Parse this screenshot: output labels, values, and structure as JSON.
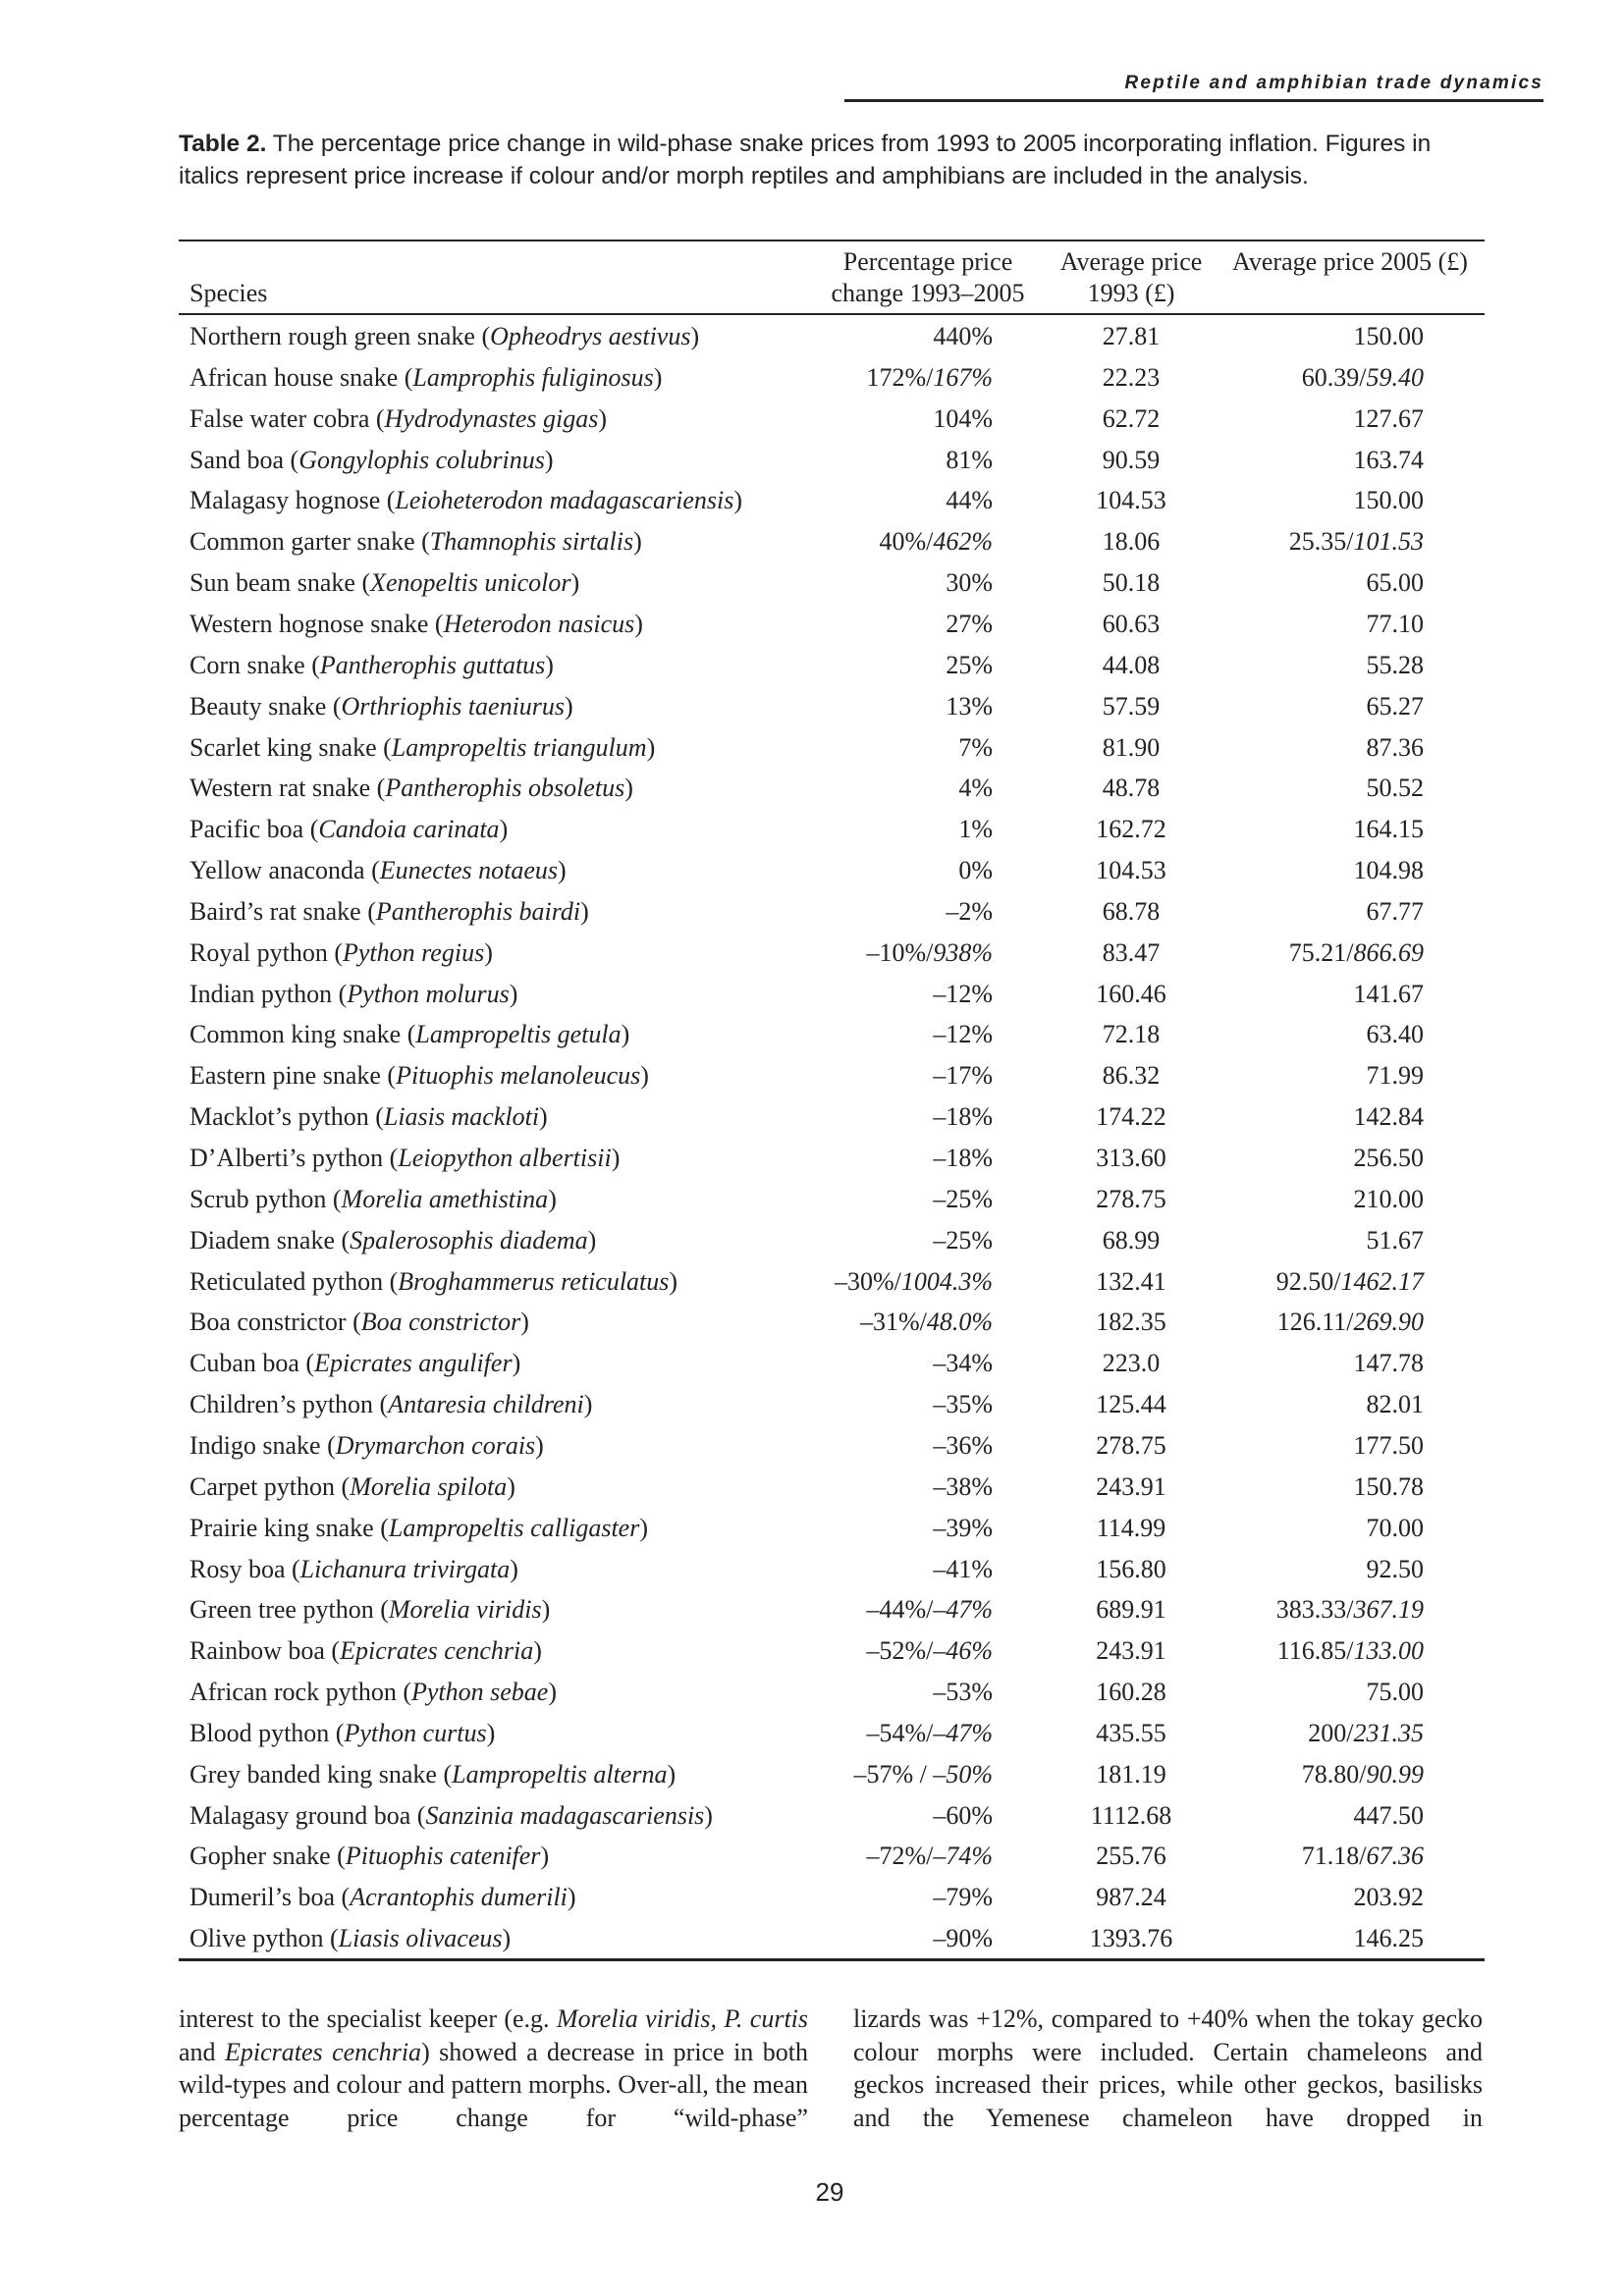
{
  "header": {
    "running_title": "Reptile and amphibian trade dynamics"
  },
  "table": {
    "caption_label": "Table 2.",
    "caption_text": "The percentage price change in wild-phase snake prices from 1993 to 2005 incorporating inflation. Figures in italics represent price increase if colour and/or morph reptiles and amphibians are included in the analysis.",
    "columns": [
      "Species",
      "Percentage price change 1993–2005",
      "Average price 1993 (£)",
      "Average price 2005 (£)"
    ],
    "rows": [
      [
        "Northern rough green snake (Opheodrys aestivus)",
        "440%",
        "27.81",
        "150.00"
      ],
      [
        "African house snake (Lamprophis fuliginosus)",
        "172%/167%",
        "22.23",
        "60.39/59.40"
      ],
      [
        "False water cobra (Hydrodynastes gigas)",
        "104%",
        "62.72",
        "127.67"
      ],
      [
        "Sand boa (Gongylophis colubrinus)",
        "81%",
        "90.59",
        "163.74"
      ],
      [
        "Malagasy hognose (Leioheterodon madagascariensis)",
        "44%",
        "104.53",
        "150.00"
      ],
      [
        "Common garter snake (Thamnophis sirtalis)",
        "40%/462%",
        "18.06",
        "25.35/101.53"
      ],
      [
        "Sun beam snake (Xenopeltis unicolor)",
        "30%",
        "50.18",
        "65.00"
      ],
      [
        "Western hognose snake (Heterodon nasicus)",
        "27%",
        "60.63",
        "77.10"
      ],
      [
        "Corn snake (Pantherophis guttatus)",
        "25%",
        "44.08",
        "55.28"
      ],
      [
        "Beauty snake (Orthriophis taeniurus)",
        "13%",
        "57.59",
        "65.27"
      ],
      [
        "Scarlet king snake (Lampropeltis triangulum)",
        "7%",
        "81.90",
        "87.36"
      ],
      [
        "Western rat snake (Pantherophis obsoletus)",
        "4%",
        "48.78",
        "50.52"
      ],
      [
        "Pacific boa (Candoia carinata)",
        "1%",
        "162.72",
        "164.15"
      ],
      [
        "Yellow anaconda (Eunectes notaeus)",
        "0%",
        "104.53",
        "104.98"
      ],
      [
        "Baird’s rat snake (Pantherophis bairdi)",
        "–2%",
        "68.78",
        "67.77"
      ],
      [
        "Royal python (Python regius)",
        "–10%/938%",
        "83.47",
        "75.21/866.69"
      ],
      [
        "Indian python (Python molurus)",
        "–12%",
        "160.46",
        "141.67"
      ],
      [
        "Common king snake (Lampropeltis getula)",
        "–12%",
        "72.18",
        "63.40"
      ],
      [
        "Eastern pine snake (Pituophis melanoleucus)",
        "–17%",
        "86.32",
        "71.99"
      ],
      [
        "Macklot’s python (Liasis mackloti)",
        "–18%",
        "174.22",
        "142.84"
      ],
      [
        "D’Alberti’s python (Leiopython albertisii)",
        "–18%",
        "313.60",
        "256.50"
      ],
      [
        "Scrub python (Morelia amethistina)",
        "–25%",
        "278.75",
        "210.00"
      ],
      [
        "Diadem snake (Spalerosophis diadema)",
        "–25%",
        "68.99",
        "51.67"
      ],
      [
        "Reticulated python (Broghammerus reticulatus)",
        "–30%/1004.3%",
        "132.41",
        "92.50/1462.17"
      ],
      [
        "Boa constrictor (Boa constrictor)",
        "–31%/48.0%",
        "182.35",
        "126.11/269.90"
      ],
      [
        "Cuban boa (Epicrates angulifer)",
        "–34%",
        "223.0",
        "147.78"
      ],
      [
        "Children’s python (Antaresia childreni)",
        "–35%",
        "125.44",
        "82.01"
      ],
      [
        "Indigo snake (Drymarchon corais)",
        "–36%",
        "278.75",
        "177.50"
      ],
      [
        "Carpet python (Morelia spilota)",
        "–38%",
        "243.91",
        "150.78"
      ],
      [
        "Prairie king snake (Lampropeltis calligaster)",
        "–39%",
        "114.99",
        "70.00"
      ],
      [
        "Rosy boa (Lichanura trivirgata)",
        "–41%",
        "156.80",
        "92.50"
      ],
      [
        "Green tree python (Morelia viridis)",
        "–44%/–47%",
        "689.91",
        "383.33/367.19"
      ],
      [
        "Rainbow boa (Epicrates cenchria)",
        "–52%/–46%",
        "243.91",
        "116.85/133.00"
      ],
      [
        "African rock python (Python sebae)",
        "–53%",
        "160.28",
        "75.00"
      ],
      [
        "Blood python (Python curtus)",
        "–54%/–47%",
        "435.55",
        "200/231.35"
      ],
      [
        "Grey banded king snake (Lampropeltis alterna)",
        "–57% / –50%",
        "181.19",
        "78.80/90.99"
      ],
      [
        "Malagasy ground boa (Sanzinia madagascariensis)",
        "–60%",
        "1112.68",
        "447.50"
      ],
      [
        "Gopher snake (Pituophis catenifer)",
        "–72%/–74%",
        "255.76",
        "71.18/67.36"
      ],
      [
        "Dumeril’s boa (Acrantophis dumerili)",
        "–79%",
        "987.24",
        "203.92"
      ],
      [
        "Olive python (Liasis olivaceus)",
        "–90%",
        "1393.76",
        "146.25"
      ]
    ]
  },
  "body": {
    "left": [
      {
        "text": "interest to the specialist keeper (e.g. "
      },
      {
        "text": "Morelia viridis, P. curtis",
        "italic": true
      },
      {
        "text": " and "
      },
      {
        "text": "Epicrates cenchria",
        "italic": true
      },
      {
        "text": ") showed a decrease in price in both wild-types and colour and pattern morphs. Over-all, the mean percentage price change for “wild-phase”"
      }
    ],
    "right": "lizards was +12%, compared to +40% when the tokay gecko colour morphs were included. Certain chameleons and geckos increased their prices, while other geckos, basilisks and the Yemenese chameleon have dropped in"
  },
  "footer": {
    "page_number": "29"
  }
}
